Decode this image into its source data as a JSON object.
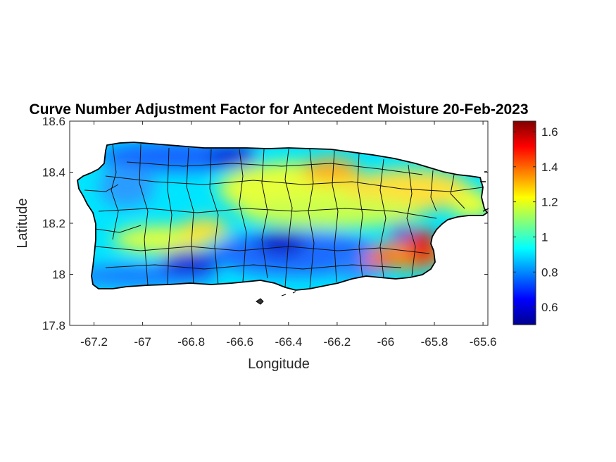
{
  "chart_data": {
    "type": "heatmap",
    "title": "Curve Number Adjustment Factor for Antecedent Moisture 20-Feb-2023",
    "xlabel": "Longitude",
    "ylabel": "Latitude",
    "xlim": [
      -67.3,
      -65.58
    ],
    "ylim": [
      17.8,
      18.6
    ],
    "x_ticks": [
      -67.2,
      -67,
      -66.8,
      -66.6,
      -66.4,
      -66.2,
      -66,
      -65.8,
      -65.6
    ],
    "x_tick_labels": [
      "-67.2",
      "-67",
      "-66.8",
      "-66.6",
      "-66.4",
      "-66.2",
      "-66",
      "-65.8",
      "-65.6"
    ],
    "y_ticks": [
      17.8,
      18,
      18.2,
      18.4,
      18.6
    ],
    "y_tick_labels": [
      "17.8",
      "18",
      "18.2",
      "18.4",
      "18.6"
    ],
    "colorbar": {
      "colormap": "jet",
      "range": [
        0.5,
        1.66
      ],
      "ticks": [
        0.6,
        0.8,
        1,
        1.2,
        1.4,
        1.6
      ],
      "tick_labels": [
        "0.6",
        "0.8",
        "1",
        "1.2",
        "1.4",
        "1.6"
      ]
    },
    "grid": false
  }
}
